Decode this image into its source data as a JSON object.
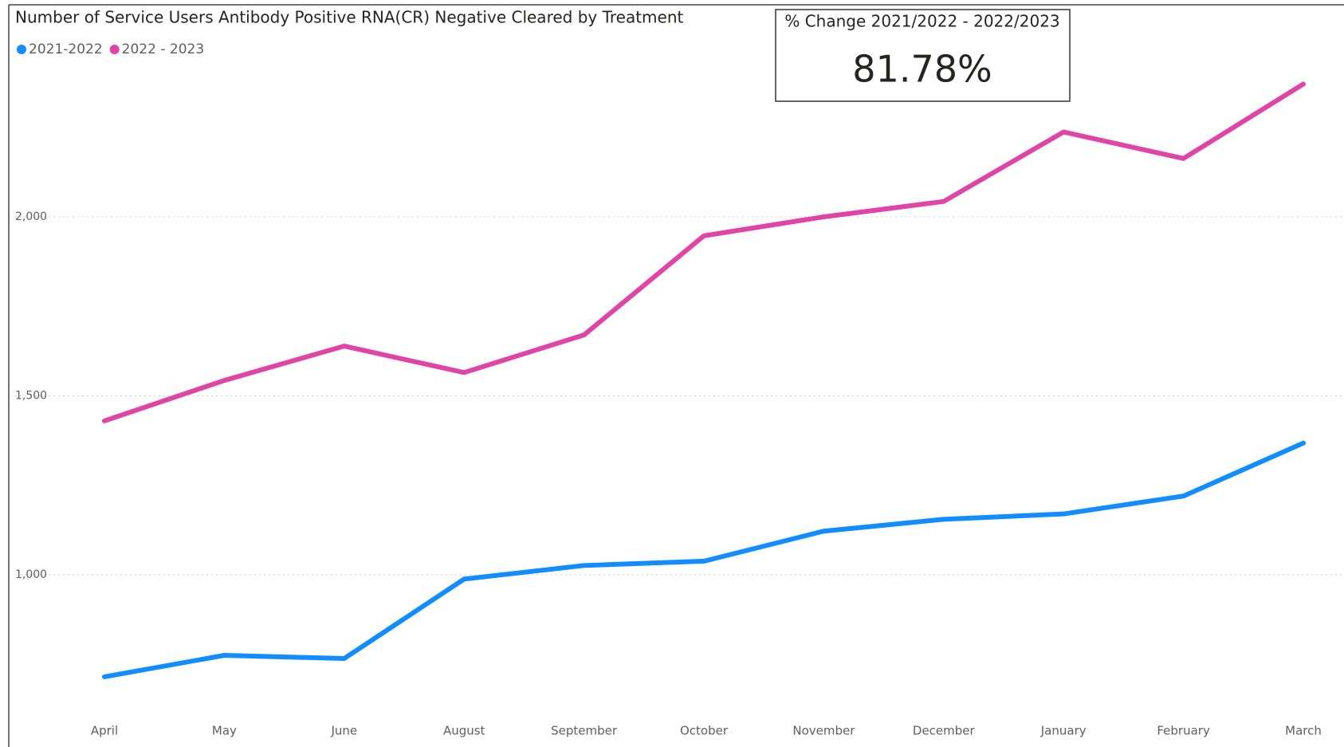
{
  "chart_data": {
    "type": "line",
    "title": "Number of Service Users Antibody Positive RNA(CR) Negative Cleared by Treatment",
    "categories": [
      "April",
      "May",
      "June",
      "August",
      "September",
      "October",
      "November",
      "December",
      "January",
      "February",
      "March"
    ],
    "series": [
      {
        "name": "2021-2022",
        "color": "#118dff",
        "values": [
          715,
          775,
          766,
          988,
          1026,
          1038,
          1122,
          1155,
          1170,
          1220,
          1368
        ]
      },
      {
        "name": "2022 - 2023",
        "color": "#e044a7",
        "values": [
          1430,
          1543,
          1639,
          1565,
          1670,
          1947,
          2000,
          2043,
          2237,
          2163,
          2371
        ]
      }
    ],
    "ylim": [
      620,
      2400
    ],
    "yticks": [
      {
        "value": 1000,
        "label": "1,000"
      },
      {
        "value": 1500,
        "label": "1,500"
      },
      {
        "value": 2000,
        "label": "2,000"
      }
    ],
    "grid": true,
    "legend": "top-left"
  },
  "card": {
    "title": "% Change 2021/2022 - 2022/2023",
    "value": "81.78%"
  }
}
